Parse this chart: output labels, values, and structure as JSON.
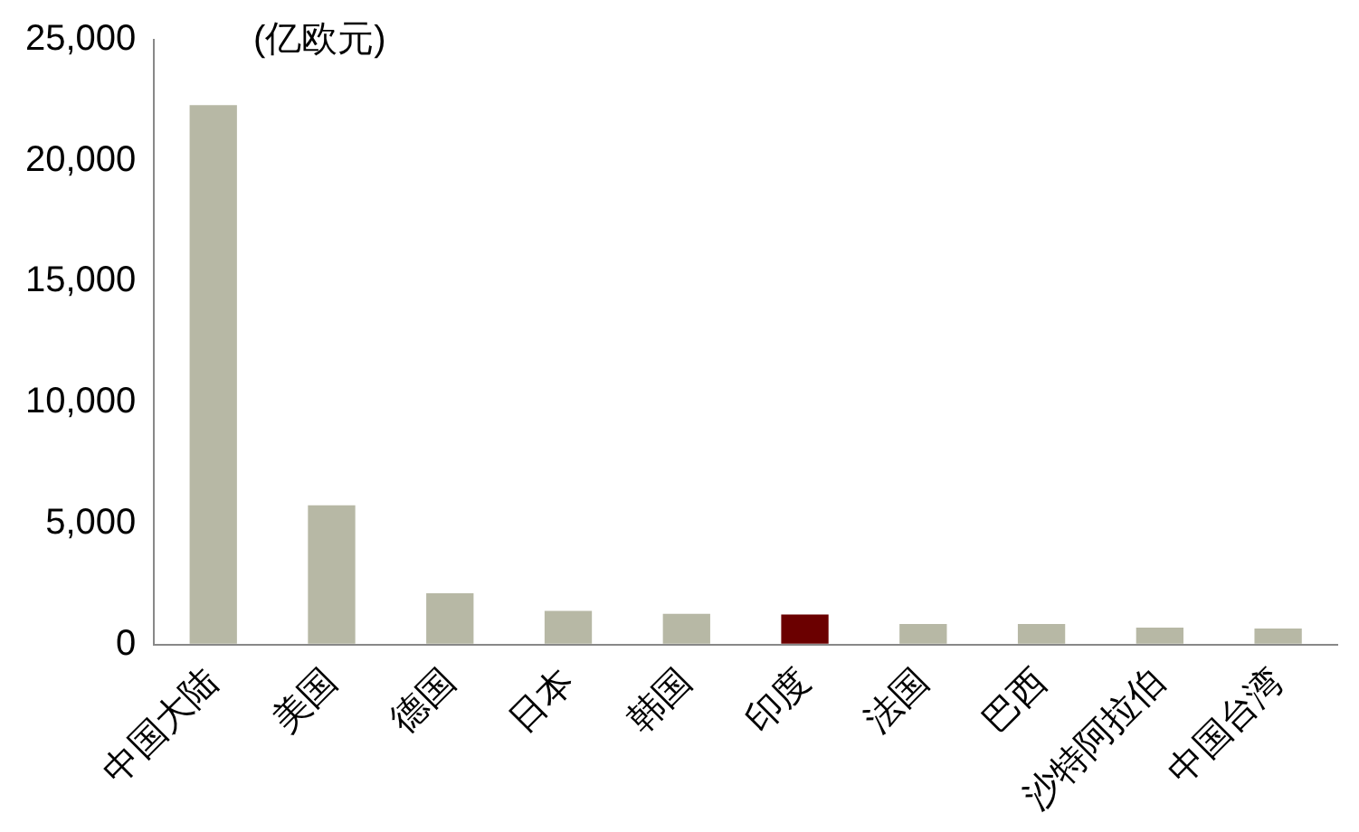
{
  "chart_data": {
    "type": "bar",
    "ylabel": "(亿欧元)",
    "categories": [
      "中国大陆",
      "美国",
      "德国",
      "日本",
      "韩国",
      "印度",
      "法国",
      "巴西",
      "沙特阿拉伯",
      "中国台湾"
    ],
    "values": [
      22300,
      5750,
      2120,
      1390,
      1270,
      1240,
      850,
      850,
      700,
      660
    ],
    "colors": [
      "#b7b8a5",
      "#b7b8a5",
      "#b7b8a5",
      "#b7b8a5",
      "#b7b8a5",
      "#6b0000",
      "#b7b8a5",
      "#b7b8a5",
      "#b7b8a5",
      "#b7b8a5"
    ],
    "ylim": [
      0,
      25000
    ],
    "yticks": [
      0,
      {
        "value": 5000,
        "label": "5,000"
      },
      {
        "value": 10000,
        "label": "10,000"
      },
      {
        "value": 15000,
        "label": "15,000"
      },
      {
        "value": 20000,
        "label": "20,000"
      },
      {
        "value": 25000,
        "label": "25,000"
      }
    ],
    "grid": false,
    "legend": false
  }
}
